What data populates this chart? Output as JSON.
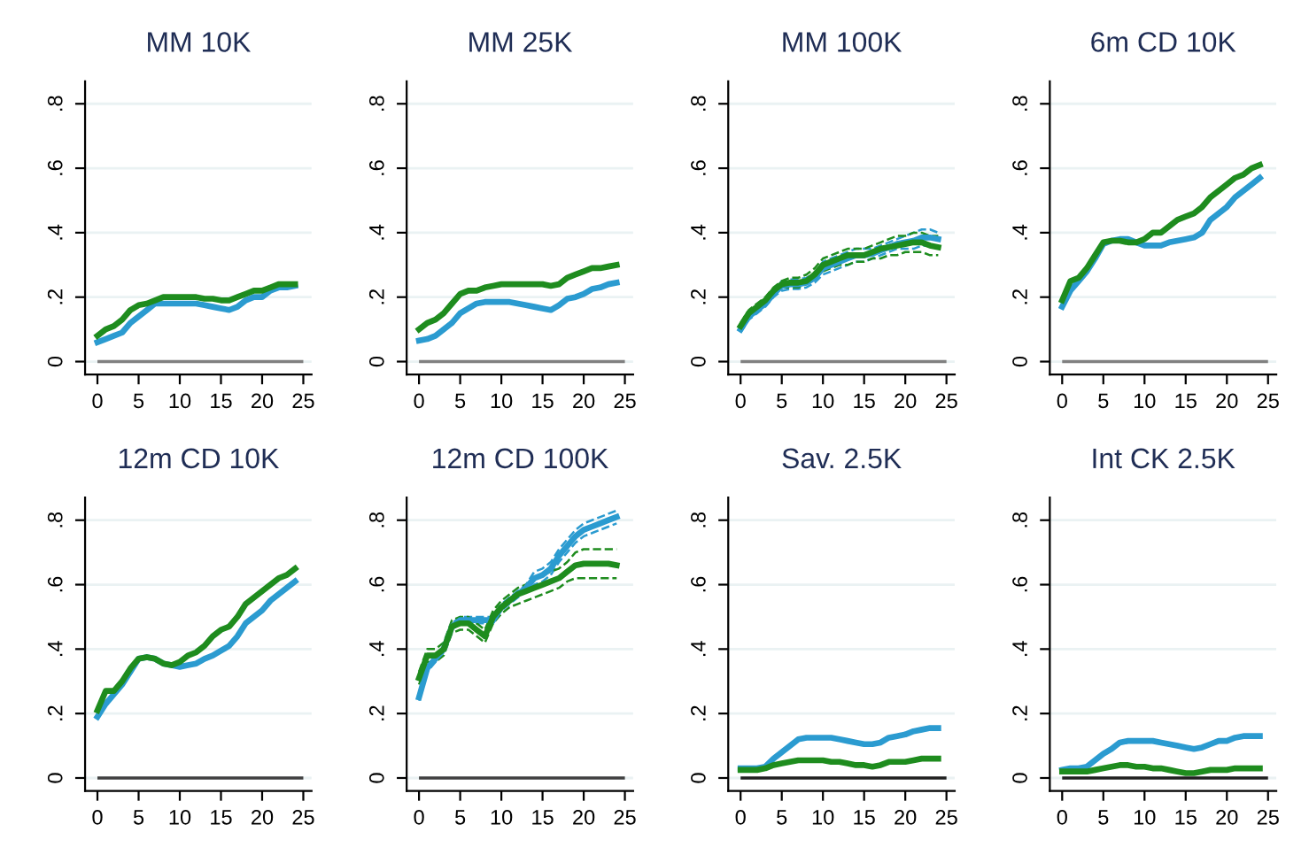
{
  "chart_data": [
    {
      "type": "line",
      "title": "MM 10K",
      "x": [
        0,
        1,
        2,
        3,
        4,
        5,
        6,
        7,
        8,
        9,
        10,
        11,
        12,
        13,
        14,
        15,
        16,
        17,
        18,
        19,
        20,
        21,
        22,
        23,
        24
      ],
      "xlim": [
        -1.5,
        26
      ],
      "xticks": [
        0,
        5,
        10,
        15,
        20,
        25
      ],
      "ylim": [
        -0.04,
        0.87
      ],
      "yticks": [
        {
          "value": 0,
          "label": "0"
        },
        {
          "value": 0.2,
          "label": ".2"
        },
        {
          "value": 0.4,
          "label": ".4"
        },
        {
          "value": 0.6,
          "label": ".6"
        },
        {
          "value": 0.8,
          "label": ".8"
        }
      ],
      "grid": "y",
      "line_style": "solid",
      "ref_lines": [
        {
          "axis": "y",
          "value": 0,
          "color": "#808080"
        }
      ],
      "series": [
        {
          "color": "#2b9bd0",
          "values": [
            0.06,
            0.07,
            0.08,
            0.09,
            0.12,
            0.14,
            0.16,
            0.18,
            0.18,
            0.18,
            0.18,
            0.18,
            0.18,
            0.175,
            0.17,
            0.165,
            0.16,
            0.17,
            0.19,
            0.2,
            0.2,
            0.22,
            0.23,
            0.23,
            0.235
          ]
        },
        {
          "color": "#1e8c1e",
          "values": [
            0.08,
            0.1,
            0.11,
            0.13,
            0.16,
            0.175,
            0.18,
            0.19,
            0.2,
            0.2,
            0.2,
            0.2,
            0.2,
            0.195,
            0.195,
            0.19,
            0.19,
            0.2,
            0.21,
            0.22,
            0.22,
            0.23,
            0.24,
            0.24,
            0.24
          ]
        }
      ]
    },
    {
      "type": "line",
      "title": "MM 25K",
      "x": [
        0,
        1,
        2,
        3,
        4,
        5,
        6,
        7,
        8,
        9,
        10,
        11,
        12,
        13,
        14,
        15,
        16,
        17,
        18,
        19,
        20,
        21,
        22,
        23,
        24
      ],
      "xlim": [
        -1.5,
        26
      ],
      "xticks": [
        0,
        5,
        10,
        15,
        20,
        25
      ],
      "ylim": [
        -0.04,
        0.87
      ],
      "yticks": [
        {
          "value": 0,
          "label": "0"
        },
        {
          "value": 0.2,
          "label": ".2"
        },
        {
          "value": 0.4,
          "label": ".4"
        },
        {
          "value": 0.6,
          "label": ".6"
        },
        {
          "value": 0.8,
          "label": ".8"
        }
      ],
      "grid": "y",
      "line_style": "solid",
      "ref_lines": [
        {
          "axis": "y",
          "value": 0,
          "color": "#808080"
        }
      ],
      "series": [
        {
          "color": "#2b9bd0",
          "values": [
            0.065,
            0.07,
            0.08,
            0.1,
            0.12,
            0.15,
            0.165,
            0.18,
            0.185,
            0.185,
            0.185,
            0.185,
            0.18,
            0.175,
            0.17,
            0.165,
            0.16,
            0.175,
            0.195,
            0.2,
            0.21,
            0.225,
            0.23,
            0.24,
            0.245
          ]
        },
        {
          "color": "#1e8c1e",
          "values": [
            0.1,
            0.12,
            0.13,
            0.15,
            0.18,
            0.21,
            0.22,
            0.22,
            0.23,
            0.235,
            0.24,
            0.24,
            0.24,
            0.24,
            0.24,
            0.24,
            0.235,
            0.24,
            0.26,
            0.27,
            0.28,
            0.29,
            0.29,
            0.295,
            0.3
          ]
        }
      ]
    },
    {
      "type": "line",
      "title": "MM 100K",
      "x": [
        0,
        1,
        2,
        3,
        4,
        5,
        6,
        7,
        8,
        9,
        10,
        11,
        12,
        13,
        14,
        15,
        16,
        17,
        18,
        19,
        20,
        21,
        22,
        23,
        24
      ],
      "xlim": [
        -1.5,
        26
      ],
      "xticks": [
        0,
        5,
        10,
        15,
        20,
        25
      ],
      "ylim": [
        -0.04,
        0.87
      ],
      "yticks": [
        {
          "value": 0,
          "label": "0"
        },
        {
          "value": 0.2,
          "label": ".2"
        },
        {
          "value": 0.4,
          "label": ".4"
        },
        {
          "value": 0.6,
          "label": ".6"
        },
        {
          "value": 0.8,
          "label": ".8"
        }
      ],
      "grid": "y",
      "line_style": "solid",
      "ref_lines": [
        {
          "axis": "y",
          "value": 0,
          "color": "#808080"
        }
      ],
      "series": [
        {
          "color": "#2b9bd0",
          "values": [
            0.1,
            0.14,
            0.16,
            0.18,
            0.21,
            0.235,
            0.24,
            0.24,
            0.245,
            0.26,
            0.29,
            0.3,
            0.31,
            0.32,
            0.33,
            0.33,
            0.335,
            0.345,
            0.355,
            0.365,
            0.37,
            0.375,
            0.385,
            0.385,
            0.38
          ]
        },
        {
          "color": "#2b9bd0",
          "line_style": "dashed",
          "values": [
            0.09,
            0.13,
            0.15,
            0.17,
            0.2,
            0.22,
            0.225,
            0.225,
            0.23,
            0.245,
            0.27,
            0.28,
            0.29,
            0.3,
            0.31,
            0.31,
            0.32,
            0.33,
            0.34,
            0.35,
            0.35,
            0.35,
            0.36,
            0.36,
            0.36
          ]
        },
        {
          "color": "#2b9bd0",
          "line_style": "dashed",
          "values": [
            0.11,
            0.15,
            0.17,
            0.19,
            0.22,
            0.25,
            0.255,
            0.255,
            0.26,
            0.275,
            0.31,
            0.32,
            0.33,
            0.34,
            0.35,
            0.35,
            0.35,
            0.36,
            0.37,
            0.38,
            0.39,
            0.4,
            0.41,
            0.41,
            0.4
          ]
        },
        {
          "color": "#1e8c1e",
          "values": [
            0.11,
            0.15,
            0.17,
            0.19,
            0.22,
            0.24,
            0.245,
            0.245,
            0.25,
            0.27,
            0.3,
            0.31,
            0.32,
            0.33,
            0.33,
            0.33,
            0.34,
            0.35,
            0.355,
            0.36,
            0.365,
            0.37,
            0.37,
            0.36,
            0.355
          ]
        },
        {
          "color": "#1e8c1e",
          "line_style": "dashed",
          "values": [
            0.1,
            0.14,
            0.16,
            0.18,
            0.21,
            0.23,
            0.23,
            0.23,
            0.24,
            0.26,
            0.28,
            0.29,
            0.3,
            0.3,
            0.31,
            0.31,
            0.32,
            0.32,
            0.33,
            0.33,
            0.34,
            0.34,
            0.34,
            0.33,
            0.33
          ]
        },
        {
          "color": "#1e8c1e",
          "line_style": "dashed",
          "values": [
            0.12,
            0.16,
            0.18,
            0.2,
            0.23,
            0.25,
            0.26,
            0.26,
            0.27,
            0.29,
            0.32,
            0.33,
            0.34,
            0.35,
            0.35,
            0.35,
            0.36,
            0.37,
            0.38,
            0.39,
            0.39,
            0.4,
            0.4,
            0.39,
            0.39
          ]
        }
      ]
    },
    {
      "type": "line",
      "title": "6m CD 10K",
      "x": [
        0,
        1,
        2,
        3,
        4,
        5,
        6,
        7,
        8,
        9,
        10,
        11,
        12,
        13,
        14,
        15,
        16,
        17,
        18,
        19,
        20,
        21,
        22,
        23,
        24
      ],
      "xlim": [
        -1.5,
        26
      ],
      "xticks": [
        0,
        5,
        10,
        15,
        20,
        25
      ],
      "ylim": [
        -0.04,
        0.87
      ],
      "yticks": [
        {
          "value": 0,
          "label": "0"
        },
        {
          "value": 0.2,
          "label": ".2"
        },
        {
          "value": 0.4,
          "label": ".4"
        },
        {
          "value": 0.6,
          "label": ".6"
        },
        {
          "value": 0.8,
          "label": ".8"
        }
      ],
      "grid": "y",
      "line_style": "solid",
      "ref_lines": [
        {
          "axis": "y",
          "value": 0,
          "color": "#808080"
        }
      ],
      "series": [
        {
          "color": "#2b9bd0",
          "values": [
            0.17,
            0.22,
            0.25,
            0.28,
            0.32,
            0.365,
            0.375,
            0.38,
            0.38,
            0.37,
            0.36,
            0.36,
            0.36,
            0.37,
            0.375,
            0.38,
            0.385,
            0.4,
            0.44,
            0.46,
            0.48,
            0.51,
            0.53,
            0.55,
            0.57
          ]
        },
        {
          "color": "#1e8c1e",
          "values": [
            0.19,
            0.25,
            0.26,
            0.29,
            0.33,
            0.37,
            0.375,
            0.375,
            0.37,
            0.37,
            0.38,
            0.4,
            0.4,
            0.42,
            0.44,
            0.45,
            0.46,
            0.48,
            0.51,
            0.53,
            0.55,
            0.57,
            0.58,
            0.6,
            0.61
          ]
        }
      ]
    },
    {
      "type": "line",
      "title": "12m CD 10K",
      "x": [
        0,
        1,
        2,
        3,
        4,
        5,
        6,
        7,
        8,
        9,
        10,
        11,
        12,
        13,
        14,
        15,
        16,
        17,
        18,
        19,
        20,
        21,
        22,
        23,
        24
      ],
      "xlim": [
        -1.5,
        26
      ],
      "xticks": [
        0,
        5,
        10,
        15,
        20,
        25
      ],
      "ylim": [
        -0.04,
        0.87
      ],
      "yticks": [
        {
          "value": 0,
          "label": "0"
        },
        {
          "value": 0.2,
          "label": ".2"
        },
        {
          "value": 0.4,
          "label": ".4"
        },
        {
          "value": 0.6,
          "label": ".6"
        },
        {
          "value": 0.8,
          "label": ".8"
        }
      ],
      "grid": "y",
      "line_style": "solid",
      "ref_lines": [
        {
          "axis": "y",
          "value": 0,
          "color": "#404040"
        }
      ],
      "series": [
        {
          "color": "#2b9bd0",
          "values": [
            0.19,
            0.23,
            0.26,
            0.29,
            0.33,
            0.37,
            0.375,
            0.37,
            0.355,
            0.35,
            0.345,
            0.35,
            0.355,
            0.37,
            0.38,
            0.395,
            0.41,
            0.44,
            0.48,
            0.5,
            0.52,
            0.55,
            0.57,
            0.59,
            0.61
          ]
        },
        {
          "color": "#1e8c1e",
          "values": [
            0.21,
            0.27,
            0.27,
            0.3,
            0.34,
            0.37,
            0.375,
            0.37,
            0.355,
            0.35,
            0.36,
            0.38,
            0.39,
            0.41,
            0.44,
            0.46,
            0.47,
            0.5,
            0.54,
            0.56,
            0.58,
            0.6,
            0.62,
            0.63,
            0.65
          ]
        }
      ]
    },
    {
      "type": "line",
      "title": "12m CD 100K",
      "x": [
        0,
        1,
        2,
        3,
        4,
        5,
        6,
        7,
        8,
        9,
        10,
        11,
        12,
        13,
        14,
        15,
        16,
        17,
        18,
        19,
        20,
        21,
        22,
        23,
        24
      ],
      "xlim": [
        -1.5,
        26
      ],
      "xticks": [
        0,
        5,
        10,
        15,
        20,
        25
      ],
      "ylim": [
        -0.04,
        0.87
      ],
      "yticks": [
        {
          "value": 0,
          "label": "0"
        },
        {
          "value": 0.2,
          "label": ".2"
        },
        {
          "value": 0.4,
          "label": ".4"
        },
        {
          "value": 0.6,
          "label": ".6"
        },
        {
          "value": 0.8,
          "label": ".8"
        }
      ],
      "grid": "y",
      "line_style": "solid",
      "ref_lines": [
        {
          "axis": "y",
          "value": 0,
          "color": "#404040"
        }
      ],
      "series": [
        {
          "color": "#2b9bd0",
          "values": [
            0.25,
            0.34,
            0.37,
            0.4,
            0.47,
            0.49,
            0.49,
            0.49,
            0.49,
            0.49,
            0.53,
            0.55,
            0.57,
            0.59,
            0.62,
            0.63,
            0.65,
            0.69,
            0.72,
            0.75,
            0.77,
            0.78,
            0.79,
            0.8,
            0.81
          ]
        },
        {
          "color": "#2b9bd0",
          "line_style": "dashed",
          "values": [
            0.24,
            0.33,
            0.36,
            0.39,
            0.46,
            0.48,
            0.48,
            0.48,
            0.48,
            0.48,
            0.52,
            0.54,
            0.56,
            0.58,
            0.6,
            0.61,
            0.63,
            0.67,
            0.7,
            0.73,
            0.75,
            0.76,
            0.77,
            0.78,
            0.79
          ]
        },
        {
          "color": "#2b9bd0",
          "line_style": "dashed",
          "values": [
            0.26,
            0.35,
            0.38,
            0.41,
            0.48,
            0.5,
            0.5,
            0.5,
            0.5,
            0.5,
            0.54,
            0.56,
            0.58,
            0.6,
            0.64,
            0.65,
            0.67,
            0.71,
            0.74,
            0.77,
            0.79,
            0.8,
            0.81,
            0.82,
            0.83
          ]
        },
        {
          "color": "#1e8c1e",
          "values": [
            0.31,
            0.38,
            0.38,
            0.4,
            0.47,
            0.48,
            0.48,
            0.46,
            0.44,
            0.5,
            0.53,
            0.55,
            0.57,
            0.58,
            0.59,
            0.6,
            0.61,
            0.62,
            0.64,
            0.66,
            0.665,
            0.665,
            0.665,
            0.665,
            0.66
          ]
        },
        {
          "color": "#1e8c1e",
          "line_style": "dashed",
          "values": [
            0.29,
            0.36,
            0.36,
            0.38,
            0.45,
            0.46,
            0.46,
            0.44,
            0.42,
            0.48,
            0.51,
            0.53,
            0.54,
            0.55,
            0.56,
            0.57,
            0.58,
            0.59,
            0.61,
            0.62,
            0.62,
            0.62,
            0.62,
            0.62,
            0.62
          ]
        },
        {
          "color": "#1e8c1e",
          "line_style": "dashed",
          "values": [
            0.33,
            0.4,
            0.4,
            0.42,
            0.49,
            0.5,
            0.5,
            0.48,
            0.46,
            0.52,
            0.55,
            0.57,
            0.59,
            0.6,
            0.62,
            0.63,
            0.64,
            0.65,
            0.67,
            0.7,
            0.71,
            0.71,
            0.71,
            0.71,
            0.71
          ]
        }
      ]
    },
    {
      "type": "line",
      "title": "Sav. 2.5K",
      "x": [
        0,
        1,
        2,
        3,
        4,
        5,
        6,
        7,
        8,
        9,
        10,
        11,
        12,
        13,
        14,
        15,
        16,
        17,
        18,
        19,
        20,
        21,
        22,
        23,
        24
      ],
      "xlim": [
        -1.5,
        26
      ],
      "xticks": [
        0,
        5,
        10,
        15,
        20,
        25
      ],
      "ylim": [
        -0.04,
        0.87
      ],
      "yticks": [
        {
          "value": 0,
          "label": "0"
        },
        {
          "value": 0.2,
          "label": ".2"
        },
        {
          "value": 0.4,
          "label": ".4"
        },
        {
          "value": 0.6,
          "label": ".6"
        },
        {
          "value": 0.8,
          "label": ".8"
        }
      ],
      "grid": "y",
      "line_style": "solid",
      "ref_lines": [
        {
          "axis": "y",
          "value": 0,
          "color": "#202020"
        }
      ],
      "series": [
        {
          "color": "#2b9bd0",
          "values": [
            0.03,
            0.03,
            0.03,
            0.035,
            0.06,
            0.08,
            0.1,
            0.12,
            0.125,
            0.125,
            0.125,
            0.125,
            0.12,
            0.115,
            0.11,
            0.105,
            0.105,
            0.11,
            0.125,
            0.13,
            0.135,
            0.145,
            0.15,
            0.155,
            0.155
          ]
        },
        {
          "color": "#1e8c1e",
          "values": [
            0.025,
            0.025,
            0.025,
            0.03,
            0.04,
            0.045,
            0.05,
            0.055,
            0.055,
            0.055,
            0.055,
            0.05,
            0.05,
            0.045,
            0.04,
            0.04,
            0.035,
            0.04,
            0.05,
            0.05,
            0.05,
            0.055,
            0.06,
            0.06,
            0.06
          ]
        }
      ]
    },
    {
      "type": "line",
      "title": "Int CK 2.5K",
      "x": [
        0,
        1,
        2,
        3,
        4,
        5,
        6,
        7,
        8,
        9,
        10,
        11,
        12,
        13,
        14,
        15,
        16,
        17,
        18,
        19,
        20,
        21,
        22,
        23,
        24
      ],
      "xlim": [
        -1.5,
        26
      ],
      "xticks": [
        0,
        5,
        10,
        15,
        20,
        25
      ],
      "ylim": [
        -0.04,
        0.87
      ],
      "yticks": [
        {
          "value": 0,
          "label": "0"
        },
        {
          "value": 0.2,
          "label": ".2"
        },
        {
          "value": 0.4,
          "label": ".4"
        },
        {
          "value": 0.6,
          "label": ".6"
        },
        {
          "value": 0.8,
          "label": ".8"
        }
      ],
      "grid": "y",
      "line_style": "solid",
      "ref_lines": [
        {
          "axis": "y",
          "value": 0,
          "color": "#202020"
        }
      ],
      "series": [
        {
          "color": "#2b9bd0",
          "values": [
            0.025,
            0.03,
            0.03,
            0.035,
            0.055,
            0.075,
            0.09,
            0.11,
            0.115,
            0.115,
            0.115,
            0.115,
            0.11,
            0.105,
            0.1,
            0.095,
            0.09,
            0.095,
            0.105,
            0.115,
            0.115,
            0.125,
            0.13,
            0.13,
            0.13
          ]
        },
        {
          "color": "#1e8c1e",
          "values": [
            0.02,
            0.02,
            0.02,
            0.02,
            0.025,
            0.03,
            0.035,
            0.04,
            0.04,
            0.035,
            0.035,
            0.03,
            0.03,
            0.025,
            0.02,
            0.015,
            0.015,
            0.02,
            0.025,
            0.025,
            0.025,
            0.03,
            0.03,
            0.03,
            0.03
          ]
        }
      ]
    }
  ]
}
